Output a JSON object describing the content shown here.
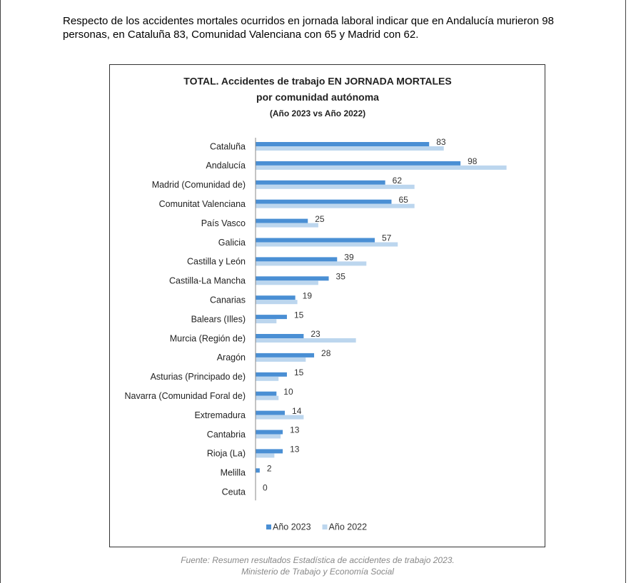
{
  "paragraph": "Respecto de los accidentes mortales ocurridos en jornada laboral indicar que en Andalucía murieron 98 personas, en Cataluña 83, Comunidad Valenciana con 65 y Madrid con 62.",
  "chart_data": {
    "type": "bar",
    "orientation": "horizontal",
    "title": [
      "TOTAL. Accidentes de trabajo EN JORNADA MORTALES",
      "por comunidad autónoma",
      "(Año 2023 vs Año 2022)"
    ],
    "categories": [
      "Cataluña",
      "Andalucía",
      "Madrid (Comunidad de)",
      "Comunitat Valenciana",
      "País Vasco",
      "Galicia",
      "Castilla y León",
      "Castilla-La Mancha",
      "Canarias",
      "Balears (Illes)",
      "Murcia (Región de)",
      "Aragón",
      "Asturias (Principado de)",
      "Navarra (Comunidad Foral de)",
      "Extremadura",
      "Cantabria",
      "Rioja (La)",
      "Melilla",
      "Ceuta"
    ],
    "series": [
      {
        "name": "Año 2023",
        "color": "#4a8fd4",
        "values": [
          83,
          98,
          62,
          65,
          25,
          57,
          39,
          35,
          19,
          15,
          23,
          28,
          15,
          10,
          14,
          13,
          13,
          2,
          0
        ],
        "data_labels": true
      },
      {
        "name": "Año 2022",
        "color": "#bcd6ee",
        "values": [
          90,
          120,
          76,
          76,
          30,
          68,
          53,
          30,
          20,
          10,
          48,
          24,
          11,
          11,
          23,
          12,
          9,
          0,
          0
        ],
        "data_labels": false
      }
    ],
    "legend": "bottom"
  },
  "source": [
    "Fuente: Resumen resultados Estadística de accidentes de trabajo 2023.",
    "Ministerio de Trabajo y Economía Social"
  ]
}
